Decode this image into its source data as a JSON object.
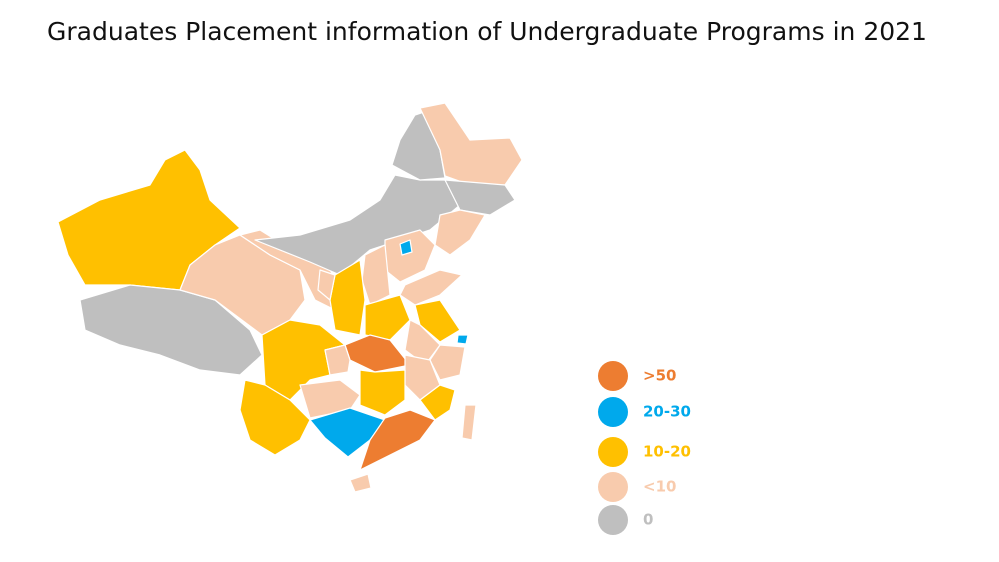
{
  "title": "Graduates Placement information of Undergraduate Programs in 2021",
  "legend": [
    {
      "label": ">50",
      "color": "#ed7d31"
    },
    {
      "label": "20-30",
      "color": "#00a9ec"
    },
    {
      "label": "10-20",
      "color": "#ffc000"
    },
    {
      "label": "<10",
      "color": "#f8cbad"
    },
    {
      "label": "0",
      "color": "#bfbfbf"
    }
  ]
}
